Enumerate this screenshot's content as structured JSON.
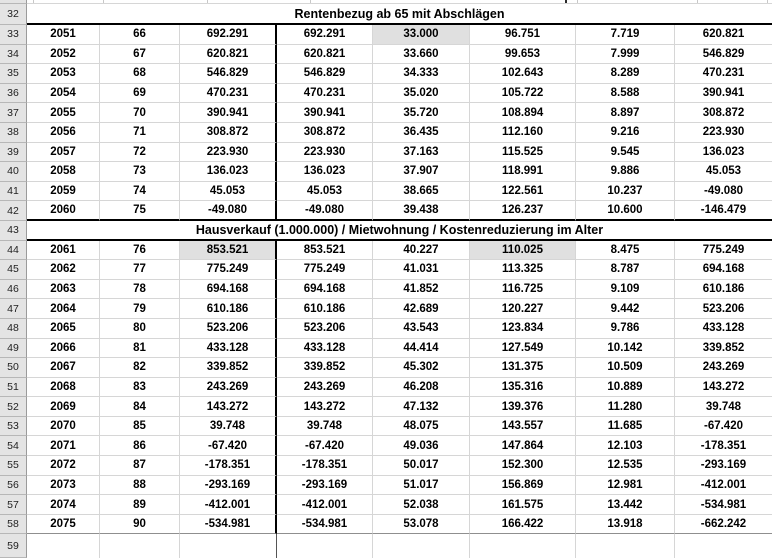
{
  "colors": {
    "cell_highlight": "#e0e0e0",
    "row_header_bg": "#e4e4e4",
    "gridline": "#d6d6d6",
    "section_border": "#000000"
  },
  "sheet": {
    "rows": [
      {
        "num": 32,
        "type": "section",
        "label": "Rentenbezug ab 65 mit Abschlägen"
      },
      {
        "num": 33,
        "type": "data",
        "cells": [
          "2051",
          "66",
          "692.291",
          "692.291",
          "33.000",
          "96.751",
          "7.719",
          "620.821"
        ],
        "highlight": [
          4
        ]
      },
      {
        "num": 34,
        "type": "data",
        "cells": [
          "2052",
          "67",
          "620.821",
          "620.821",
          "33.660",
          "99.653",
          "7.999",
          "546.829"
        ],
        "highlight": []
      },
      {
        "num": 35,
        "type": "data",
        "cells": [
          "2053",
          "68",
          "546.829",
          "546.829",
          "34.333",
          "102.643",
          "8.289",
          "470.231"
        ],
        "highlight": []
      },
      {
        "num": 36,
        "type": "data",
        "cells": [
          "2054",
          "69",
          "470.231",
          "470.231",
          "35.020",
          "105.722",
          "8.588",
          "390.941"
        ],
        "highlight": []
      },
      {
        "num": 37,
        "type": "data",
        "cells": [
          "2055",
          "70",
          "390.941",
          "390.941",
          "35.720",
          "108.894",
          "8.897",
          "308.872"
        ],
        "highlight": []
      },
      {
        "num": 38,
        "type": "data",
        "cells": [
          "2056",
          "71",
          "308.872",
          "308.872",
          "36.435",
          "112.160",
          "9.216",
          "223.930"
        ],
        "highlight": []
      },
      {
        "num": 39,
        "type": "data",
        "cells": [
          "2057",
          "72",
          "223.930",
          "223.930",
          "37.163",
          "115.525",
          "9.545",
          "136.023"
        ],
        "highlight": []
      },
      {
        "num": 40,
        "type": "data",
        "cells": [
          "2058",
          "73",
          "136.023",
          "136.023",
          "37.907",
          "118.991",
          "9.886",
          "45.053"
        ],
        "highlight": []
      },
      {
        "num": 41,
        "type": "data",
        "cells": [
          "2059",
          "74",
          "45.053",
          "45.053",
          "38.665",
          "122.561",
          "10.237",
          "-49.080"
        ],
        "highlight": []
      },
      {
        "num": 42,
        "type": "data",
        "cells": [
          "2060",
          "75",
          "-49.080",
          "-49.080",
          "39.438",
          "126.237",
          "10.600",
          "-146.479"
        ],
        "highlight": [],
        "bottom": "thick"
      },
      {
        "num": 43,
        "type": "section",
        "label": "Hausverkauf (1.000.000) / Mietwohnung / Kostenreduzierung im Alter"
      },
      {
        "num": 44,
        "type": "data",
        "cells": [
          "2061",
          "76",
          "853.521",
          "853.521",
          "40.227",
          "110.025",
          "8.475",
          "775.249"
        ],
        "highlight": [
          2,
          5
        ]
      },
      {
        "num": 45,
        "type": "data",
        "cells": [
          "2062",
          "77",
          "775.249",
          "775.249",
          "41.031",
          "113.325",
          "8.787",
          "694.168"
        ],
        "highlight": []
      },
      {
        "num": 46,
        "type": "data",
        "cells": [
          "2063",
          "78",
          "694.168",
          "694.168",
          "41.852",
          "116.725",
          "9.109",
          "610.186"
        ],
        "highlight": []
      },
      {
        "num": 47,
        "type": "data",
        "cells": [
          "2064",
          "79",
          "610.186",
          "610.186",
          "42.689",
          "120.227",
          "9.442",
          "523.206"
        ],
        "highlight": []
      },
      {
        "num": 48,
        "type": "data",
        "cells": [
          "2065",
          "80",
          "523.206",
          "523.206",
          "43.543",
          "123.834",
          "9.786",
          "433.128"
        ],
        "highlight": []
      },
      {
        "num": 49,
        "type": "data",
        "cells": [
          "2066",
          "81",
          "433.128",
          "433.128",
          "44.414",
          "127.549",
          "10.142",
          "339.852"
        ],
        "highlight": []
      },
      {
        "num": 50,
        "type": "data",
        "cells": [
          "2067",
          "82",
          "339.852",
          "339.852",
          "45.302",
          "131.375",
          "10.509",
          "243.269"
        ],
        "highlight": []
      },
      {
        "num": 51,
        "type": "data",
        "cells": [
          "2068",
          "83",
          "243.269",
          "243.269",
          "46.208",
          "135.316",
          "10.889",
          "143.272"
        ],
        "highlight": []
      },
      {
        "num": 52,
        "type": "data",
        "cells": [
          "2069",
          "84",
          "143.272",
          "143.272",
          "47.132",
          "139.376",
          "11.280",
          "39.748"
        ],
        "highlight": []
      },
      {
        "num": 53,
        "type": "data",
        "cells": [
          "2070",
          "85",
          "39.748",
          "39.748",
          "48.075",
          "143.557",
          "11.685",
          "-67.420"
        ],
        "highlight": []
      },
      {
        "num": 54,
        "type": "data",
        "cells": [
          "2071",
          "86",
          "-67.420",
          "-67.420",
          "49.036",
          "147.864",
          "12.103",
          "-178.351"
        ],
        "highlight": []
      },
      {
        "num": 55,
        "type": "data",
        "cells": [
          "2072",
          "87",
          "-178.351",
          "-178.351",
          "50.017",
          "152.300",
          "12.535",
          "-293.169"
        ],
        "highlight": []
      },
      {
        "num": 56,
        "type": "data",
        "cells": [
          "2073",
          "88",
          "-293.169",
          "-293.169",
          "51.017",
          "156.869",
          "12.981",
          "-412.001"
        ],
        "highlight": []
      },
      {
        "num": 57,
        "type": "data",
        "cells": [
          "2074",
          "89",
          "-412.001",
          "-412.001",
          "52.038",
          "161.575",
          "13.442",
          "-534.981"
        ],
        "highlight": []
      },
      {
        "num": 58,
        "type": "data",
        "cells": [
          "2075",
          "90",
          "-534.981",
          "-534.981",
          "53.078",
          "166.422",
          "13.918",
          "-662.242"
        ],
        "highlight": [],
        "bottom": "medium"
      },
      {
        "num": 59,
        "type": "empty"
      }
    ]
  }
}
